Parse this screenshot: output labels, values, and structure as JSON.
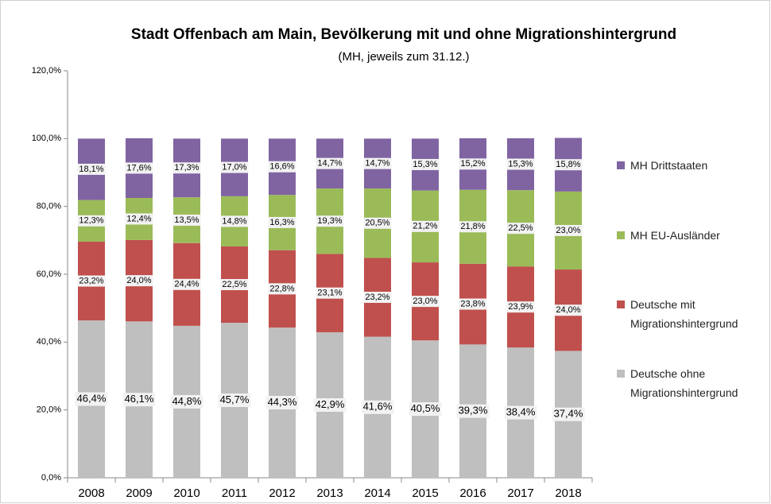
{
  "chart_data": {
    "type": "stacked_bar",
    "title": "Stadt Offenbach am Main, Bevölkerung mit und ohne Migrationshintergrund",
    "subtitle": "(MH, jeweils zum 31.12.)",
    "categories": [
      "2008",
      "2009",
      "2010",
      "2011",
      "2012",
      "2013",
      "2014",
      "2015",
      "2016",
      "2017",
      "2018"
    ],
    "series": [
      {
        "name": "Deutsche ohne Migrationshintergrund",
        "color": "#bfbfbf",
        "values": [
          46.4,
          46.1,
          44.8,
          45.7,
          44.3,
          42.9,
          41.6,
          40.5,
          39.3,
          38.4,
          37.4
        ],
        "value_labels": [
          "46,4%",
          "46,1%",
          "44,8%",
          "45,7%",
          "44,3%",
          "42,9%",
          "41,6%",
          "40,5%",
          "39,3%",
          "38,4%",
          "37,4%"
        ]
      },
      {
        "name": "Deutsche mit Migrationshintergrund",
        "color": "#c0504d",
        "values": [
          23.2,
          24.0,
          24.4,
          22.5,
          22.8,
          23.1,
          23.2,
          23.0,
          23.8,
          23.9,
          24.0
        ],
        "value_labels": [
          "23,2%",
          "24,0%",
          "24,4%",
          "22,5%",
          "22,8%",
          "23,1%",
          "23,2%",
          "23,0%",
          "23,8%",
          "23,9%",
          "24,0%"
        ]
      },
      {
        "name": "MH EU-Ausländer",
        "color": "#9bbb59",
        "values": [
          12.3,
          12.4,
          13.5,
          14.8,
          16.3,
          19.3,
          20.5,
          21.2,
          21.8,
          22.5,
          23.0
        ],
        "value_labels": [
          "12,3%",
          "12,4%",
          "13,5%",
          "14,8%",
          "16,3%",
          "19,3%",
          "20,5%",
          "21,2%",
          "21,8%",
          "22,5%",
          "23,0%"
        ]
      },
      {
        "name": "MH Drittstaaten",
        "color": "#8064a2",
        "values": [
          18.1,
          17.6,
          17.3,
          17.0,
          16.6,
          14.7,
          14.7,
          15.3,
          15.2,
          15.3,
          15.8
        ],
        "value_labels": [
          "18,1%",
          "17,6%",
          "17,3%",
          "17,0%",
          "16,6%",
          "14,7%",
          "14,7%",
          "15,3%",
          "15,2%",
          "15,3%",
          "15,8%"
        ]
      }
    ],
    "ylim": [
      0,
      120
    ],
    "yticks": [
      {
        "value": 0,
        "label": "0,0%"
      },
      {
        "value": 20,
        "label": "20,0%"
      },
      {
        "value": 40,
        "label": "40,0%"
      },
      {
        "value": 60,
        "label": "60,0%"
      },
      {
        "value": 80,
        "label": "80,0%"
      },
      {
        "value": 100,
        "label": "100,0%"
      },
      {
        "value": 120,
        "label": "120,0%"
      }
    ],
    "grid": false,
    "legend": "right"
  }
}
